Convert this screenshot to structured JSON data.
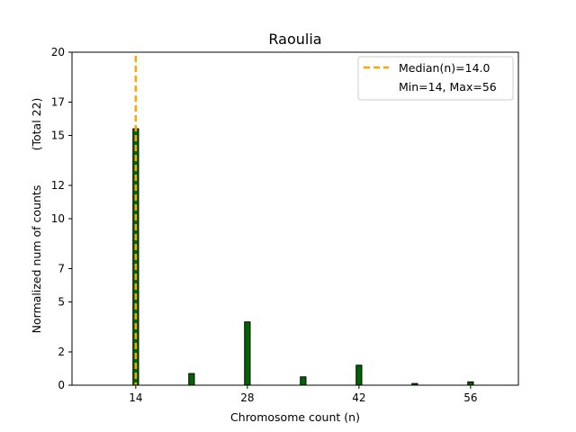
{
  "chart_data": {
    "type": "bar",
    "title": "Raoulia",
    "xlabel": "Chromosome count (n)",
    "ylabel": "Normalized num of counts",
    "ylabel_total": "(Total 22)",
    "xlim": [
      6,
      62
    ],
    "ylim": [
      0,
      20
    ],
    "xticks": [
      14,
      28,
      42,
      56
    ],
    "yticks": [
      0,
      2,
      5,
      7,
      10,
      12,
      15,
      17,
      20
    ],
    "bar_width": 0.7,
    "bar_color": "#006400",
    "bars": [
      {
        "x": 14,
        "y": 15.4
      },
      {
        "x": 21,
        "y": 0.7
      },
      {
        "x": 28,
        "y": 3.8
      },
      {
        "x": 35,
        "y": 0.5
      },
      {
        "x": 42,
        "y": 1.2
      },
      {
        "x": 49,
        "y": 0.1
      },
      {
        "x": 56,
        "y": 0.2
      }
    ],
    "median": {
      "value": 14,
      "label": "Median(n)=14.0",
      "color": "#FFA500"
    },
    "minmax_label": "Min=14, Max=56",
    "legend_position": "top-right"
  }
}
